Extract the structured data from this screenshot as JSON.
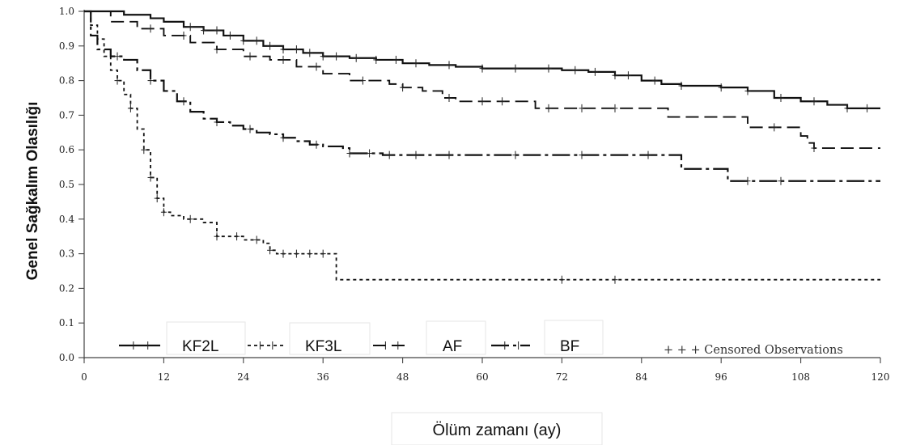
{
  "chart_data": {
    "type": "line",
    "chart_kind": "kaplan-meier step curves",
    "title": "",
    "xlabel": "Ölüm zamanı (ay)",
    "ylabel": "Genel Sağkalım Olasılığı",
    "xlim": [
      0,
      120
    ],
    "ylim": [
      0,
      1.0
    ],
    "x_ticks": [
      0,
      12,
      24,
      36,
      48,
      60,
      72,
      84,
      96,
      108,
      120
    ],
    "y_ticks": [
      "0.0",
      "0.1",
      "0.2",
      "0.3",
      "0.4",
      "0.5",
      "0.6",
      "0.7",
      "0.8",
      "0.9",
      "1.0"
    ],
    "grid": false,
    "legend_position": "bottom",
    "legend_note": "+ + + Censored Observations",
    "series": [
      {
        "name": "KF2L",
        "line_style": "solid",
        "points": [
          [
            0,
            1.0
          ],
          [
            6,
            0.99
          ],
          [
            10,
            0.98
          ],
          [
            12,
            0.97
          ],
          [
            15,
            0.955
          ],
          [
            18,
            0.945
          ],
          [
            21,
            0.93
          ],
          [
            24,
            0.915
          ],
          [
            27,
            0.9
          ],
          [
            30,
            0.89
          ],
          [
            33,
            0.88
          ],
          [
            36,
            0.87
          ],
          [
            40,
            0.865
          ],
          [
            44,
            0.86
          ],
          [
            48,
            0.85
          ],
          [
            52,
            0.845
          ],
          [
            56,
            0.84
          ],
          [
            60,
            0.835
          ],
          [
            66,
            0.835
          ],
          [
            72,
            0.83
          ],
          [
            76,
            0.825
          ],
          [
            80,
            0.815
          ],
          [
            84,
            0.8
          ],
          [
            87,
            0.79
          ],
          [
            90,
            0.785
          ],
          [
            96,
            0.78
          ],
          [
            100,
            0.77
          ],
          [
            104,
            0.75
          ],
          [
            108,
            0.74
          ],
          [
            112,
            0.73
          ],
          [
            115,
            0.72
          ],
          [
            120,
            0.72
          ]
        ],
        "censored_x": [
          16,
          18,
          20,
          22,
          24,
          26,
          28,
          30,
          32,
          34,
          36,
          38,
          41,
          44,
          47,
          50,
          55,
          60,
          65,
          70,
          74,
          77,
          80,
          82,
          86,
          90,
          96,
          100,
          105,
          110,
          115,
          118
        ]
      },
      {
        "name": "KF3L",
        "line_style": "dashed",
        "points": [
          [
            0,
            1.0
          ],
          [
            1,
            0.96
          ],
          [
            2,
            0.92
          ],
          [
            3,
            0.87
          ],
          [
            4,
            0.83
          ],
          [
            5,
            0.8
          ],
          [
            6,
            0.76
          ],
          [
            7,
            0.72
          ],
          [
            8,
            0.66
          ],
          [
            9,
            0.6
          ],
          [
            10,
            0.52
          ],
          [
            11,
            0.46
          ],
          [
            12,
            0.42
          ],
          [
            13,
            0.41
          ],
          [
            15,
            0.4
          ],
          [
            18,
            0.39
          ],
          [
            20,
            0.35
          ],
          [
            24,
            0.34
          ],
          [
            27,
            0.33
          ],
          [
            28,
            0.31
          ],
          [
            29,
            0.3
          ],
          [
            38,
            0.3
          ],
          [
            38,
            0.225
          ],
          [
            120,
            0.225
          ]
        ],
        "censored_x": [
          5,
          7,
          9,
          10,
          11,
          12,
          16,
          20,
          23,
          26,
          28,
          30,
          32,
          34,
          36,
          72,
          80
        ]
      },
      {
        "name": "AF",
        "line_style": "long-dash",
        "points": [
          [
            0,
            1.0
          ],
          [
            4,
            0.97
          ],
          [
            8,
            0.95
          ],
          [
            12,
            0.93
          ],
          [
            16,
            0.91
          ],
          [
            20,
            0.89
          ],
          [
            24,
            0.87
          ],
          [
            28,
            0.86
          ],
          [
            32,
            0.84
          ],
          [
            36,
            0.82
          ],
          [
            40,
            0.8
          ],
          [
            46,
            0.79
          ],
          [
            48,
            0.78
          ],
          [
            51,
            0.77
          ],
          [
            54,
            0.75
          ],
          [
            56,
            0.74
          ],
          [
            66,
            0.74
          ],
          [
            68,
            0.72
          ],
          [
            88,
            0.72
          ],
          [
            88,
            0.695
          ],
          [
            100,
            0.695
          ],
          [
            100,
            0.665
          ],
          [
            106,
            0.665
          ],
          [
            108,
            0.64
          ],
          [
            109,
            0.62
          ],
          [
            110,
            0.605
          ],
          [
            120,
            0.605
          ]
        ],
        "censored_x": [
          10,
          15,
          20,
          25,
          30,
          35,
          42,
          48,
          55,
          60,
          63,
          70,
          75,
          80,
          104,
          110
        ]
      },
      {
        "name": "BF",
        "line_style": "dash-dot",
        "points": [
          [
            0,
            1.0
          ],
          [
            1,
            0.93
          ],
          [
            2,
            0.89
          ],
          [
            4,
            0.87
          ],
          [
            6,
            0.86
          ],
          [
            8,
            0.83
          ],
          [
            10,
            0.8
          ],
          [
            12,
            0.77
          ],
          [
            14,
            0.74
          ],
          [
            16,
            0.71
          ],
          [
            18,
            0.69
          ],
          [
            20,
            0.68
          ],
          [
            22,
            0.67
          ],
          [
            24,
            0.66
          ],
          [
            26,
            0.65
          ],
          [
            28,
            0.645
          ],
          [
            30,
            0.635
          ],
          [
            32,
            0.625
          ],
          [
            34,
            0.615
          ],
          [
            36,
            0.61
          ],
          [
            39,
            0.605
          ],
          [
            40,
            0.59
          ],
          [
            45,
            0.585
          ],
          [
            90,
            0.585
          ],
          [
            90,
            0.545
          ],
          [
            97,
            0.545
          ],
          [
            97,
            0.51
          ],
          [
            120,
            0.51
          ]
        ],
        "censored_x": [
          5,
          10,
          15,
          20,
          25,
          30,
          35,
          40,
          43,
          46,
          50,
          55,
          65,
          75,
          85,
          100,
          105
        ]
      }
    ]
  }
}
